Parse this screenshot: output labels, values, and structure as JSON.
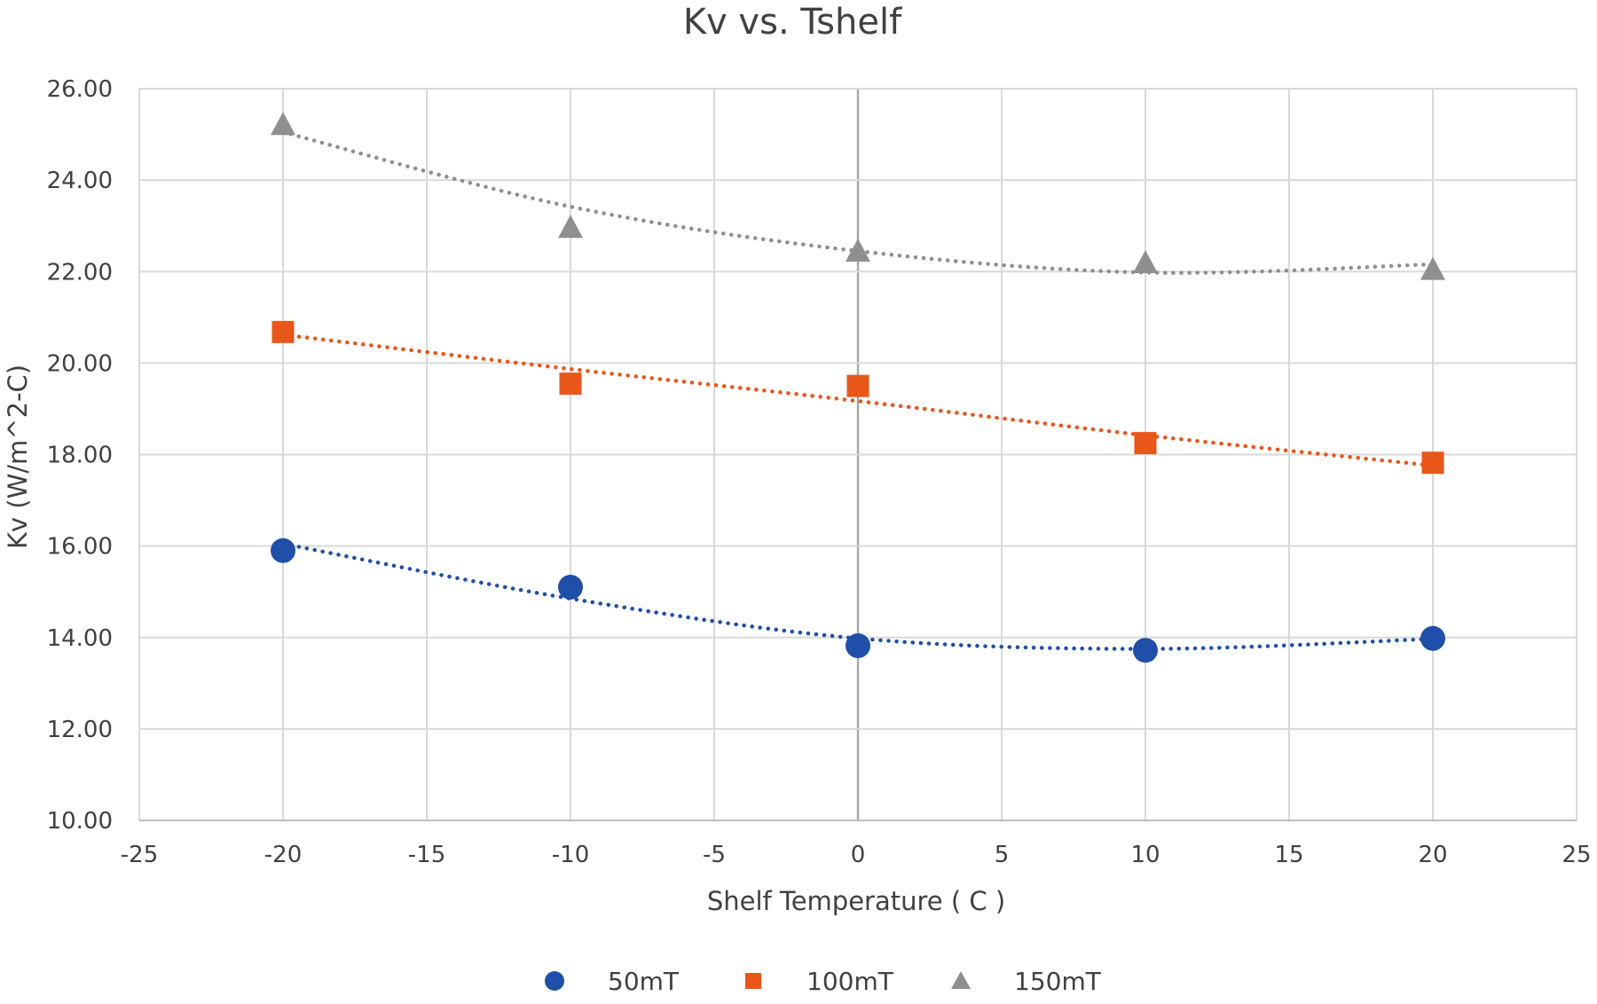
{
  "chart_data": {
    "type": "scatter",
    "title": "Kv vs. Tshelf",
    "xlabel": "Shelf Temperature ( C )",
    "ylabel": "Kv (W/m^2-C)",
    "xlim": [
      -25,
      25
    ],
    "ylim": [
      10,
      26
    ],
    "x_ticks": [
      -25,
      -20,
      -15,
      -10,
      -5,
      0,
      5,
      10,
      15,
      20,
      25
    ],
    "x_tick_labels": [
      "-25",
      "-20",
      "-15",
      "-10",
      "-5",
      "0",
      "5",
      "10",
      "15",
      "20",
      "25"
    ],
    "y_ticks": [
      10,
      12,
      14,
      16,
      18,
      20,
      22,
      24,
      26
    ],
    "y_tick_labels": [
      "10.00",
      "12.00",
      "14.00",
      "16.00",
      "18.00",
      "20.00",
      "22.00",
      "24.00",
      "26.00"
    ],
    "grid": true,
    "legend_position": "bottom",
    "series": [
      {
        "name": "50mT",
        "marker": "circle",
        "color": "#1f4fa8",
        "x": [
          -20,
          -10,
          0,
          10,
          20
        ],
        "y": [
          15.9,
          15.1,
          13.82,
          13.72,
          13.98
        ],
        "trendline": "dotted polynomial",
        "trend_y": [
          16.05,
          14.85,
          13.98,
          13.75,
          13.97
        ]
      },
      {
        "name": "100mT",
        "marker": "square",
        "color": "#e8561a",
        "x": [
          -20,
          -10,
          0,
          10,
          20
        ],
        "y": [
          20.68,
          19.55,
          19.5,
          18.25,
          17.82
        ],
        "trendline": "dotted linear",
        "trend_y": [
          20.62,
          19.87,
          19.17,
          18.42,
          17.76
        ]
      },
      {
        "name": "150mT",
        "marker": "triangle",
        "color": "#8f8f8f",
        "x": [
          -20,
          -10,
          0,
          10,
          20
        ],
        "y": [
          25.22,
          22.97,
          22.45,
          22.2,
          22.05
        ],
        "trendline": "dotted polynomial",
        "trend_y": [
          25.05,
          23.42,
          22.45,
          21.98,
          22.16
        ]
      }
    ]
  }
}
